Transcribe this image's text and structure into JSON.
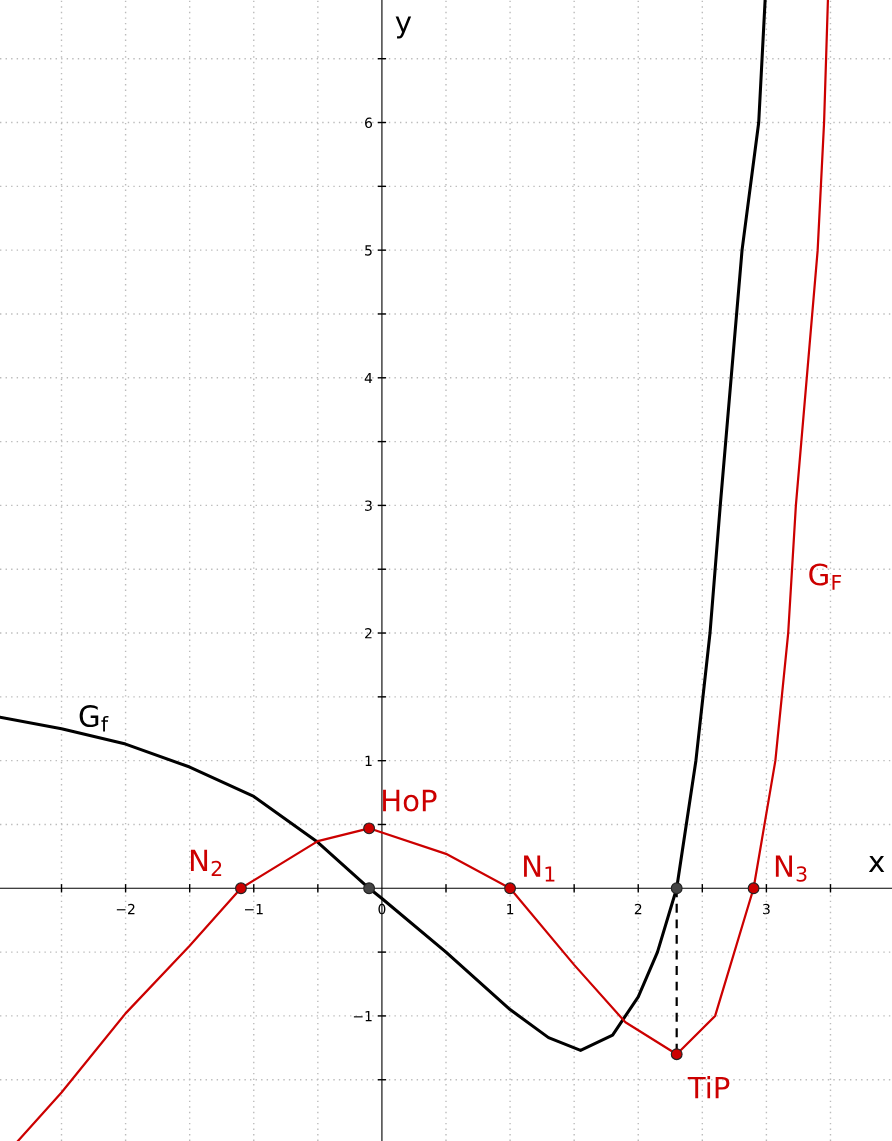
{
  "chart_data": {
    "type": "line",
    "xlabel": "x",
    "ylabel": "y",
    "xlim": [
      -2.98,
      3.98
    ],
    "ylim": [
      -1.98,
      6.96
    ],
    "xticks": [
      {
        "value": -2.5,
        "label": null
      },
      {
        "value": -2,
        "label": "−2"
      },
      {
        "value": -1.5,
        "label": null
      },
      {
        "value": -1,
        "label": "−1"
      },
      {
        "value": -0.5,
        "label": null
      },
      0,
      {
        "value": 0.5,
        "label": null
      },
      1,
      {
        "value": 1.5,
        "label": null
      },
      2,
      {
        "value": 2.5,
        "label": null
      },
      3,
      {
        "value": 3.5,
        "label": null
      }
    ],
    "yticks": [
      {
        "value": -1.5,
        "label": null
      },
      {
        "value": -1,
        "label": "−1"
      },
      {
        "value": -0.5,
        "label": null
      },
      0,
      {
        "value": 0.5,
        "label": null
      },
      1,
      {
        "value": 1.5,
        "label": null
      },
      2,
      {
        "value": 2.5,
        "label": null
      },
      3,
      {
        "value": 3.5,
        "label": null
      },
      4,
      {
        "value": 4.5,
        "label": null
      },
      5,
      {
        "value": 5.5,
        "label": null
      },
      6,
      {
        "value": 6.5,
        "label": null
      }
    ],
    "grid": true,
    "series": [
      {
        "color": "#000000",
        "x": [
          -2.98,
          -2.5,
          -2,
          -1.5,
          -1,
          -0.5,
          -0.1,
          0,
          0.5,
          1,
          1.3,
          1.55,
          1.8,
          2,
          2.15,
          2.3,
          2.45,
          2.56,
          2.64,
          2.81,
          2.94,
          2.99
        ],
        "values": [
          1.34,
          1.25,
          1.13,
          0.95,
          0.72,
          0.36,
          0,
          -0.08,
          -0.5,
          -0.95,
          -1.17,
          -1.27,
          -1.15,
          -0.85,
          -0.5,
          0,
          1,
          2,
          3,
          5,
          6,
          6.96
        ]
      },
      {
        "color": "#cc0000",
        "x": [
          -2.84,
          -2.5,
          -2,
          -1.5,
          -1.1,
          -0.5,
          -0.1,
          0.5,
          1,
          1.5,
          1.9,
          2.3,
          2.6,
          2.9,
          3.07,
          3.17,
          3.23,
          3.4,
          3.45,
          3.48
        ],
        "values": [
          -1.98,
          -1.6,
          -0.98,
          -0.45,
          0,
          0.37,
          0.47,
          0.27,
          0,
          -0.6,
          -1.05,
          -1.3,
          -1.0,
          0,
          1,
          2,
          3,
          5,
          6,
          6.96
        ]
      },
      {
        "color": "#000000",
        "line_style": "dashed",
        "x": [
          2.3,
          2.3
        ],
        "values": [
          0,
          -1.3
        ]
      },
      {
        "type": "scatter",
        "color": "#cc0000",
        "marker": "circle",
        "x": [
          -1.1,
          -0.1,
          1,
          2.3,
          2.9
        ],
        "values": [
          0,
          0.47,
          0,
          -1.3,
          0
        ]
      },
      {
        "type": "scatter",
        "color": "#444444",
        "marker": "circle",
        "x": [
          -0.1,
          2.3
        ],
        "values": [
          0,
          0
        ]
      }
    ],
    "annotations": [
      {
        "text": "G$_{f}$",
        "x": -2,
        "y": 1.13
      },
      {
        "text": "G$_{F}$",
        "x": 3.17,
        "y": 2
      },
      {
        "text": "N$_{2}$",
        "x": -1.1,
        "y": 0
      },
      {
        "text": "HoP",
        "x": -0.1,
        "y": 0.47
      },
      {
        "text": "N$_{1}$",
        "x": 1,
        "y": 0
      },
      {
        "text": "N$_{3}$",
        "x": 2.9,
        "y": 0
      },
      {
        "text": "TiP",
        "x": 2.3,
        "y": -1.3
      }
    ]
  }
}
